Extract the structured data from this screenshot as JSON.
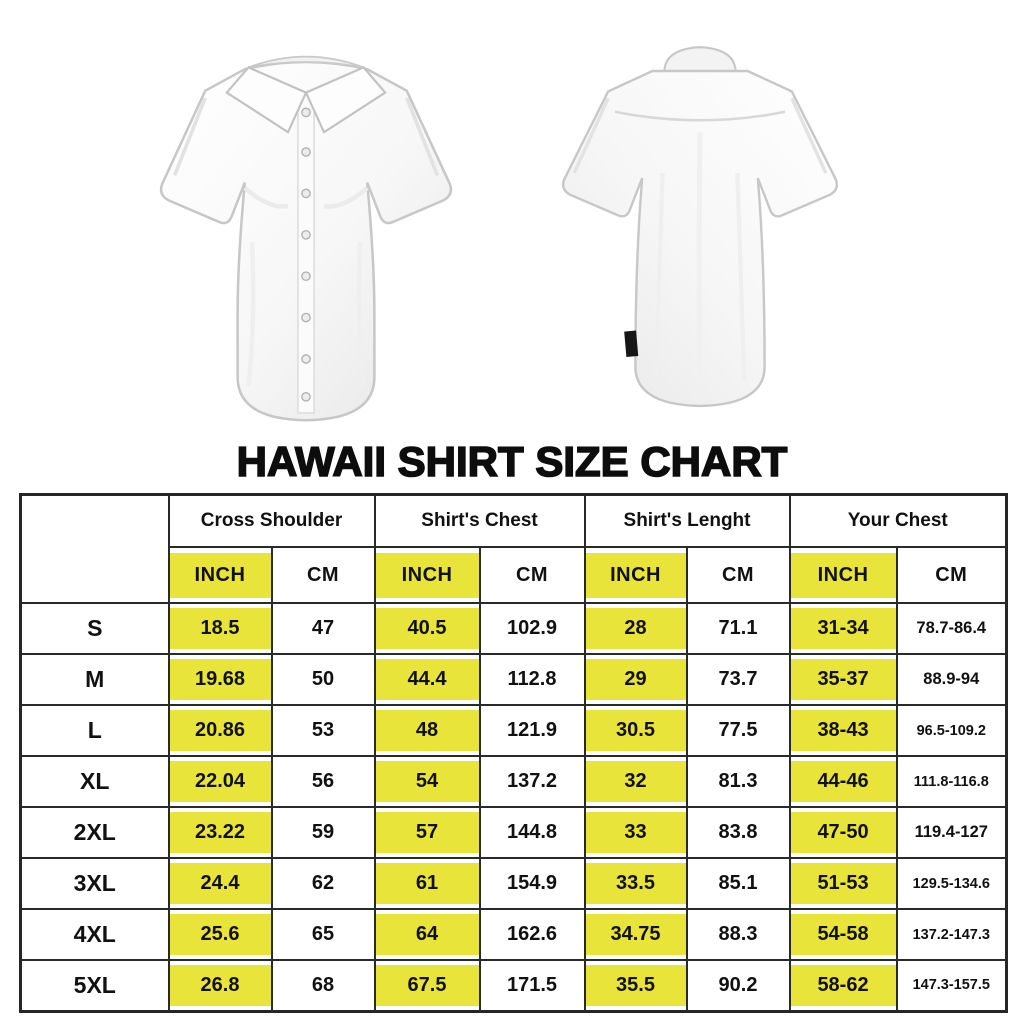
{
  "title": "HAWAII SHIRT SIZE CHART",
  "figures": {
    "front": "white short-sleeve button-up shirt, front view",
    "back": "white short-sleeve button-up shirt, back view with black hem tag"
  },
  "table": {
    "corner_label": "",
    "highlight_color": "#e9e43a",
    "border_color": "#2a2a2a",
    "groups": [
      {
        "label": "Cross Shoulder"
      },
      {
        "label": "Shirt's Chest"
      },
      {
        "label": "Shirt's Lenght"
      },
      {
        "label": "Your Chest"
      }
    ],
    "unit_headers": {
      "inch": "INCH",
      "cm": "CM"
    },
    "rows": [
      {
        "size": "S",
        "cells": [
          "18.5",
          "47",
          "40.5",
          "102.9",
          "28",
          "71.1",
          "31-34",
          "78.7-86.4"
        ]
      },
      {
        "size": "M",
        "cells": [
          "19.68",
          "50",
          "44.4",
          "112.8",
          "29",
          "73.7",
          "35-37",
          "88.9-94"
        ]
      },
      {
        "size": "L",
        "cells": [
          "20.86",
          "53",
          "48",
          "121.9",
          "30.5",
          "77.5",
          "38-43",
          "96.5-109.2"
        ]
      },
      {
        "size": "XL",
        "cells": [
          "22.04",
          "56",
          "54",
          "137.2",
          "32",
          "81.3",
          "44-46",
          "111.8-116.8"
        ]
      },
      {
        "size": "2XL",
        "cells": [
          "23.22",
          "59",
          "57",
          "144.8",
          "33",
          "83.8",
          "47-50",
          "119.4-127"
        ]
      },
      {
        "size": "3XL",
        "cells": [
          "24.4",
          "62",
          "61",
          "154.9",
          "33.5",
          "85.1",
          "51-53",
          "129.5-134.6"
        ]
      },
      {
        "size": "4XL",
        "cells": [
          "25.6",
          "65",
          "64",
          "162.6",
          "34.75",
          "88.3",
          "54-58",
          "137.2-147.3"
        ]
      },
      {
        "size": "5XL",
        "cells": [
          "26.8",
          "68",
          "67.5",
          "171.5",
          "35.5",
          "90.2",
          "58-62",
          "147.3-157.5"
        ]
      }
    ]
  }
}
